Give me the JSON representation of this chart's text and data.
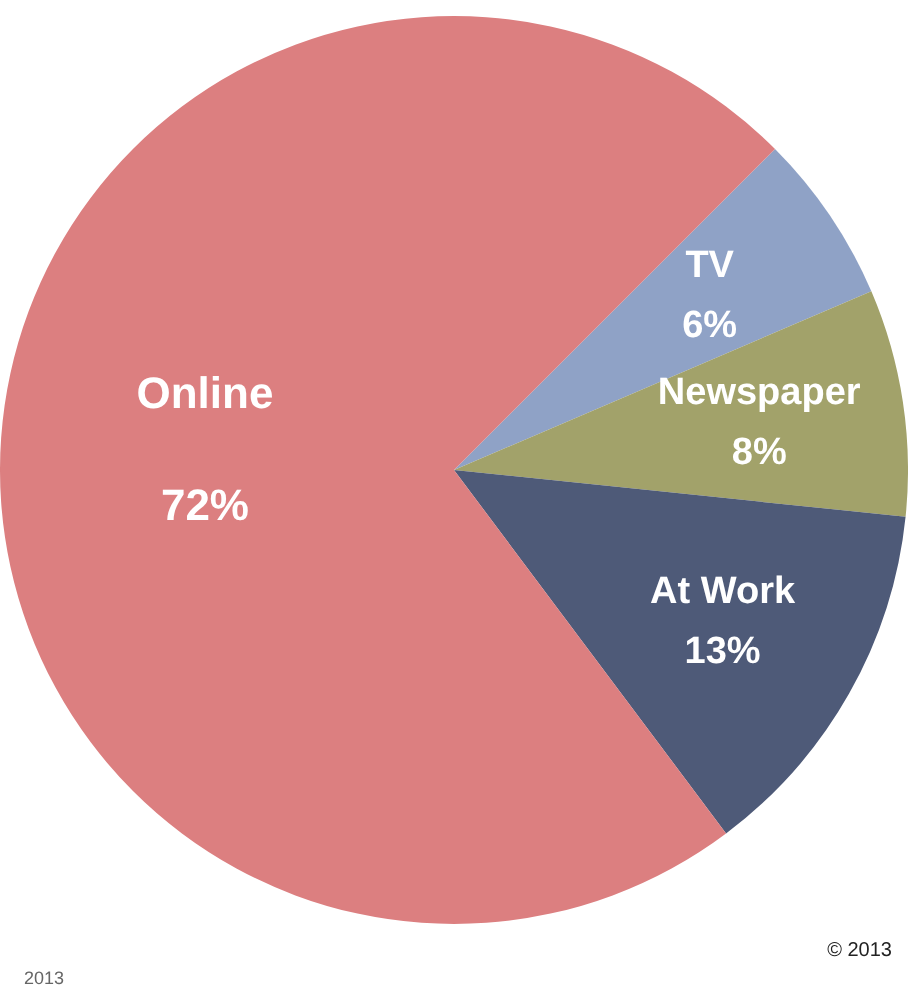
{
  "chart_data": {
    "type": "pie",
    "categories": [
      "TV",
      "Newspaper",
      "At Work",
      "Online"
    ],
    "values": [
      6,
      8,
      13,
      72
    ],
    "value_labels": [
      "6%",
      "8%",
      "13%",
      "72%"
    ],
    "colors": [
      "#8fa2c6",
      "#a2a26a",
      "#4e5a78",
      "#dc7f80"
    ],
    "legend": false,
    "annotations": [
      "2013",
      "© 2013"
    ]
  }
}
